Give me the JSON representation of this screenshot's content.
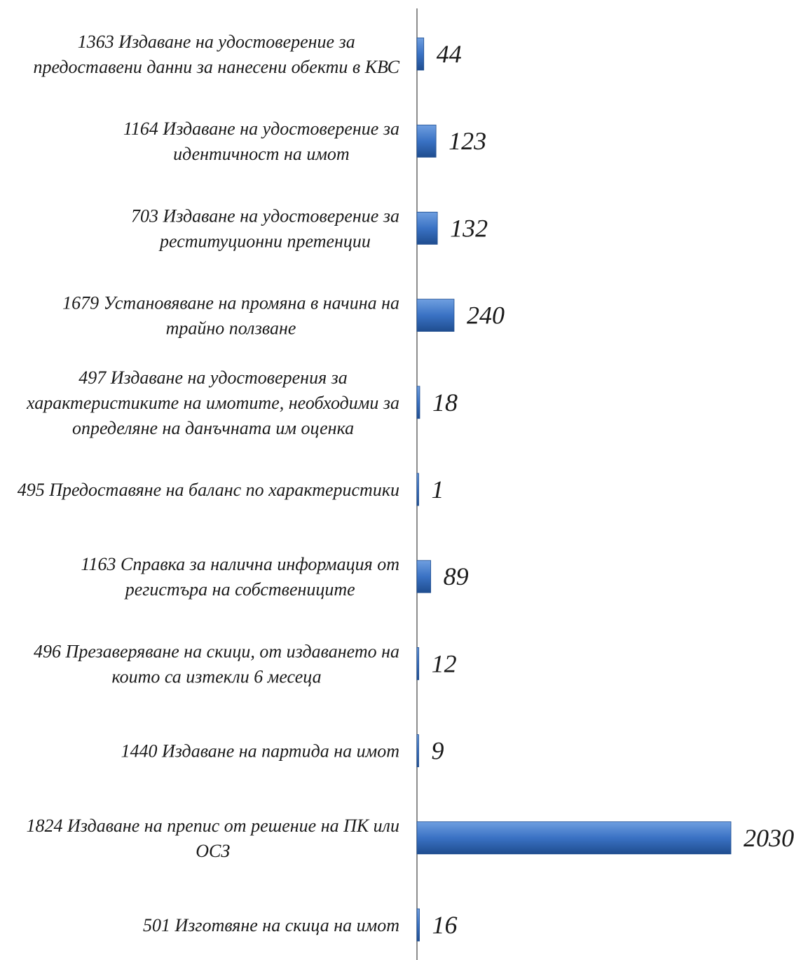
{
  "chart_data": {
    "type": "bar",
    "orientation": "horizontal",
    "categories": [
      [
        "1363 Издаване на удостоверение за",
        "предоставени данни за нанесени обекти в КВС"
      ],
      [
        "1164 Издаване на удостоверение за",
        "идентичност на имот"
      ],
      [
        "703 Издаване на удостоверение за",
        "реституционни претенции"
      ],
      [
        "1679 Установяване на промяна в начина на",
        "трайно ползване"
      ],
      [
        "497 Издаване на удостоверения за",
        "характеристиките на имотите, необходими за",
        "определяне на данъчната им оценка"
      ],
      [
        "495 Предоставяне на баланс по характеристики"
      ],
      [
        "1163 Справка за налична информация от",
        "регистъра на собствениците"
      ],
      [
        "496 Презаверяване на скици, от издаването на",
        "които са изтекли 6 месеца"
      ],
      [
        "1440 Издаване на партида на имот"
      ],
      [
        "1824 Издаване на препис от решение на ПК или",
        "ОСЗ"
      ],
      [
        "501 Изготвяне на скица на имот"
      ]
    ],
    "values": [
      44,
      123,
      132,
      240,
      18,
      1,
      89,
      12,
      9,
      2030,
      16
    ],
    "value_labels": [
      "44",
      "123",
      "132",
      "240",
      "18",
      "1",
      "89",
      "12",
      "9",
      "2030",
      "16"
    ],
    "xlim": [
      0,
      2030
    ],
    "legend": "none",
    "grid": false,
    "colors": {
      "bar_top": "#6f9fe0",
      "bar_mid": "#3a72c4",
      "bar_bottom": "#1f4d8f",
      "axis": "#666666",
      "text": "#1a1a1a"
    }
  }
}
